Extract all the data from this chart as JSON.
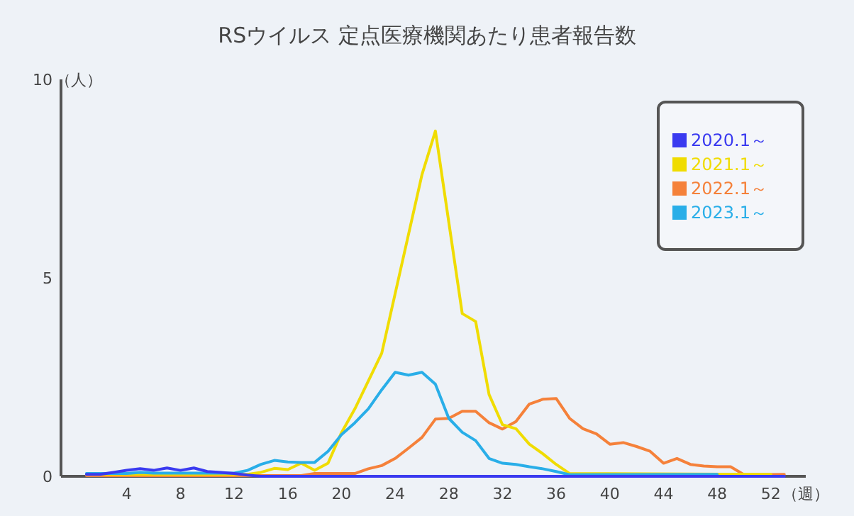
{
  "chart_data": {
    "type": "line",
    "title": "RSウイルス 定点医療機関あたり患者報告数",
    "xlabel": "（週）",
    "ylabel": "（人）",
    "xlim": [
      -0.9,
      54.6
    ],
    "xticks": [
      4,
      8,
      12,
      16,
      20,
      24,
      28,
      32,
      36,
      40,
      44,
      48,
      52
    ],
    "ylim": [
      0,
      10
    ],
    "yticks": [
      0,
      5,
      10
    ],
    "grid": false,
    "legend": "top right",
    "marker": "none",
    "line_style": "solid",
    "series": [
      {
        "name": "2020.1～",
        "color": "#3a3af0",
        "x": [
          1,
          2,
          3,
          4,
          5,
          6,
          7,
          8,
          9,
          10,
          11,
          12,
          13,
          14,
          53
        ],
        "values": [
          0.05,
          0.05,
          0.1,
          0.15,
          0.19,
          0.15,
          0.21,
          0.15,
          0.21,
          0.12,
          0.1,
          0.07,
          0.03,
          0,
          0
        ]
      },
      {
        "name": "2021.1～",
        "color": "#f0dc00",
        "x": [
          1,
          13,
          14,
          15,
          16,
          17,
          18,
          19,
          20,
          21,
          22,
          23,
          24,
          25,
          26,
          27,
          28,
          29,
          30,
          31,
          32,
          33,
          34,
          35,
          36,
          37,
          52
        ],
        "values": [
          0.05,
          0.05,
          0.1,
          0.2,
          0.17,
          0.33,
          0.15,
          0.33,
          1.1,
          1.7,
          2.4,
          3.1,
          4.6,
          6.1,
          7.6,
          8.7,
          6.4,
          4.1,
          3.9,
          2.06,
          1.3,
          1.2,
          0.81,
          0.57,
          0.3,
          0.07,
          0.05
        ]
      },
      {
        "name": "2022.1～",
        "color": "#f5813a",
        "x": [
          1,
          17,
          18,
          19,
          20,
          21,
          22,
          23,
          24,
          25,
          26,
          27,
          28,
          29,
          30,
          31,
          32,
          33,
          34,
          35,
          36,
          37,
          38,
          39,
          40,
          41,
          42,
          43,
          44,
          45,
          46,
          47,
          48,
          49,
          50,
          53
        ],
        "values": [
          0.02,
          0.02,
          0.07,
          0.07,
          0.07,
          0.07,
          0.19,
          0.27,
          0.45,
          0.71,
          0.98,
          1.44,
          1.46,
          1.64,
          1.64,
          1.35,
          1.19,
          1.38,
          1.82,
          1.94,
          1.96,
          1.46,
          1.2,
          1.07,
          0.81,
          0.85,
          0.75,
          0.63,
          0.33,
          0.45,
          0.3,
          0.26,
          0.24,
          0.24,
          0.04,
          0.05
        ]
      },
      {
        "name": "2023.1～",
        "color": "#29aee8",
        "x": [
          1,
          2,
          3,
          4,
          5,
          6,
          7,
          8,
          9,
          10,
          11,
          12,
          13,
          14,
          15,
          16,
          17,
          18,
          19,
          20,
          21,
          22,
          23,
          24,
          25,
          26,
          27,
          28,
          29,
          30,
          31,
          32,
          33,
          34,
          35,
          36,
          37,
          48
        ],
        "values": [
          0.07,
          0.07,
          0.07,
          0.07,
          0.1,
          0.08,
          0.08,
          0.08,
          0.08,
          0.08,
          0.08,
          0.08,
          0.15,
          0.3,
          0.4,
          0.36,
          0.35,
          0.35,
          0.63,
          1.05,
          1.35,
          1.7,
          2.18,
          2.62,
          2.55,
          2.62,
          2.32,
          1.46,
          1.11,
          0.9,
          0.45,
          0.33,
          0.3,
          0.24,
          0.19,
          0.12,
          0.04,
          0.05
        ]
      }
    ]
  }
}
